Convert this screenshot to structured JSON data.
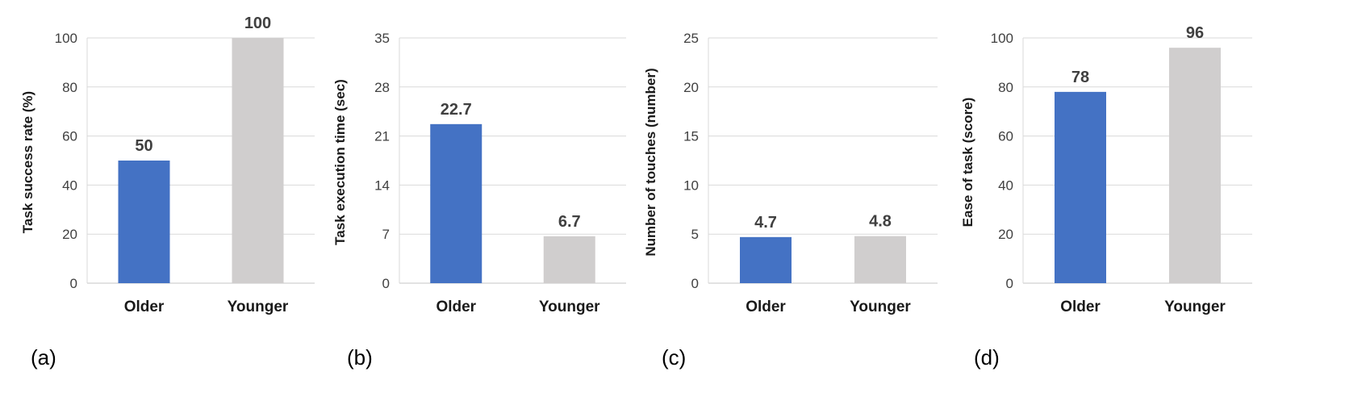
{
  "colors": {
    "older": "#4472C4",
    "younger": "#D0CECE",
    "gridline": "#D9D9D9",
    "axis": "#D9D9D9"
  },
  "chart_data": [
    {
      "type": "bar",
      "panel_label": "(a)",
      "ylabel": "Task success rate (%)",
      "categories": [
        "Older",
        "Younger"
      ],
      "values": [
        50,
        100
      ],
      "value_labels": [
        "50",
        "100"
      ],
      "ylim": [
        0,
        100
      ],
      "yticks": [
        0,
        20,
        40,
        60,
        80,
        100
      ],
      "ytick_labels": [
        "0",
        "20",
        "40",
        "60",
        "80",
        "100"
      ],
      "grid": true
    },
    {
      "type": "bar",
      "panel_label": "(b)",
      "ylabel": "Task execution time (sec)",
      "categories": [
        "Older",
        "Younger"
      ],
      "values": [
        22.7,
        6.7
      ],
      "value_labels": [
        "22.7",
        "6.7"
      ],
      "ylim": [
        0,
        35
      ],
      "yticks": [
        0,
        7,
        14,
        21,
        28,
        35
      ],
      "ytick_labels": [
        "0",
        "7",
        "14",
        "21",
        "28",
        "35"
      ],
      "grid": true
    },
    {
      "type": "bar",
      "panel_label": "(c)",
      "ylabel": "Number of touches (number)",
      "categories": [
        "Older",
        "Younger"
      ],
      "values": [
        4.7,
        4.8
      ],
      "value_labels": [
        "4.7",
        "4.8"
      ],
      "ylim": [
        0,
        25
      ],
      "yticks": [
        0,
        5,
        10,
        15,
        20,
        25
      ],
      "ytick_labels": [
        "0",
        "5",
        "10",
        "15",
        "20",
        "25"
      ],
      "grid": true
    },
    {
      "type": "bar",
      "panel_label": "(d)",
      "ylabel": "Ease of task (score)",
      "categories": [
        "Older",
        "Younger"
      ],
      "values": [
        78,
        96
      ],
      "value_labels": [
        "78",
        "96"
      ],
      "ylim": [
        0,
        100
      ],
      "yticks": [
        0,
        20,
        40,
        60,
        80,
        100
      ],
      "ytick_labels": [
        "0",
        "20",
        "40",
        "60",
        "80",
        "100"
      ],
      "grid": true
    }
  ]
}
